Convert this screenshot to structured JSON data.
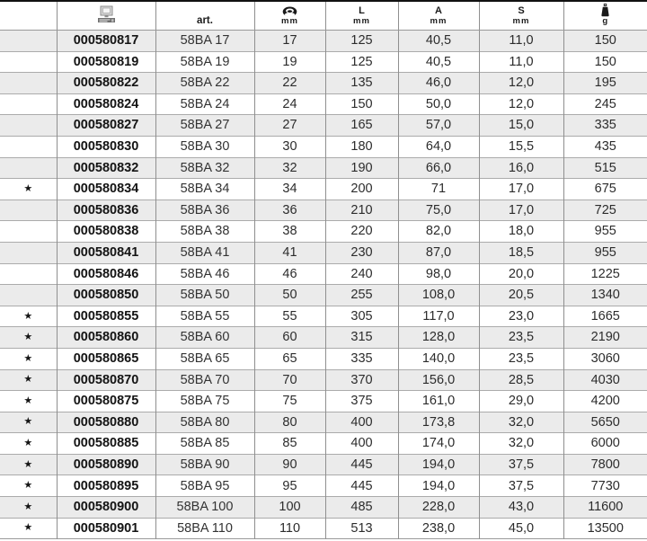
{
  "table": {
    "header": {
      "fav": "",
      "art": "art.",
      "L": "L",
      "A": "A",
      "S": "S",
      "mm": "mm",
      "g": "g"
    },
    "header_icons": {
      "edp": "computer-icon",
      "dia": "nut-icon",
      "weight": "weight-icon"
    },
    "rows": [
      {
        "fav": "",
        "edp": "000580817",
        "art": "58BA 17",
        "dia": "17",
        "l": "125",
        "a": "40,5",
        "s": "11,0",
        "g": "150"
      },
      {
        "fav": "",
        "edp": "000580819",
        "art": "58BA 19",
        "dia": "19",
        "l": "125",
        "a": "40,5",
        "s": "11,0",
        "g": "150"
      },
      {
        "fav": "",
        "edp": "000580822",
        "art": "58BA 22",
        "dia": "22",
        "l": "135",
        "a": "46,0",
        "s": "12,0",
        "g": "195"
      },
      {
        "fav": "",
        "edp": "000580824",
        "art": "58BA 24",
        "dia": "24",
        "l": "150",
        "a": "50,0",
        "s": "12,0",
        "g": "245"
      },
      {
        "fav": "",
        "edp": "000580827",
        "art": "58BA 27",
        "dia": "27",
        "l": "165",
        "a": "57,0",
        "s": "15,0",
        "g": "335"
      },
      {
        "fav": "",
        "edp": "000580830",
        "art": "58BA 30",
        "dia": "30",
        "l": "180",
        "a": "64,0",
        "s": "15,5",
        "g": "435"
      },
      {
        "fav": "",
        "edp": "000580832",
        "art": "58BA 32",
        "dia": "32",
        "l": "190",
        "a": "66,0",
        "s": "16,0",
        "g": "515"
      },
      {
        "fav": "★",
        "edp": "000580834",
        "art": "58BA 34",
        "dia": "34",
        "l": "200",
        "a": "71",
        "s": "17,0",
        "g": "675"
      },
      {
        "fav": "",
        "edp": "000580836",
        "art": "58BA 36",
        "dia": "36",
        "l": "210",
        "a": "75,0",
        "s": "17,0",
        "g": "725"
      },
      {
        "fav": "",
        "edp": "000580838",
        "art": "58BA 38",
        "dia": "38",
        "l": "220",
        "a": "82,0",
        "s": "18,0",
        "g": "955"
      },
      {
        "fav": "",
        "edp": "000580841",
        "art": "58BA 41",
        "dia": "41",
        "l": "230",
        "a": "87,0",
        "s": "18,5",
        "g": "955"
      },
      {
        "fav": "",
        "edp": "000580846",
        "art": "58BA 46",
        "dia": "46",
        "l": "240",
        "a": "98,0",
        "s": "20,0",
        "g": "1225"
      },
      {
        "fav": "",
        "edp": "000580850",
        "art": "58BA 50",
        "dia": "50",
        "l": "255",
        "a": "108,0",
        "s": "20,5",
        "g": "1340"
      },
      {
        "fav": "★",
        "edp": "000580855",
        "art": "58BA 55",
        "dia": "55",
        "l": "305",
        "a": "117,0",
        "s": "23,0",
        "g": "1665"
      },
      {
        "fav": "★",
        "edp": "000580860",
        "art": "58BA 60",
        "dia": "60",
        "l": "315",
        "a": "128,0",
        "s": "23,5",
        "g": "2190"
      },
      {
        "fav": "★",
        "edp": "000580865",
        "art": "58BA 65",
        "dia": "65",
        "l": "335",
        "a": "140,0",
        "s": "23,5",
        "g": "3060"
      },
      {
        "fav": "★",
        "edp": "000580870",
        "art": "58BA 70",
        "dia": "70",
        "l": "370",
        "a": "156,0",
        "s": "28,5",
        "g": "4030"
      },
      {
        "fav": "★",
        "edp": "000580875",
        "art": "58BA 75",
        "dia": "75",
        "l": "375",
        "a": "161,0",
        "s": "29,0",
        "g": "4200"
      },
      {
        "fav": "★",
        "edp": "000580880",
        "art": "58BA 80",
        "dia": "80",
        "l": "400",
        "a": "173,8",
        "s": "32,0",
        "g": "5650"
      },
      {
        "fav": "★",
        "edp": "000580885",
        "art": "58BA 85",
        "dia": "85",
        "l": "400",
        "a": "174,0",
        "s": "32,0",
        "g": "6000"
      },
      {
        "fav": "★",
        "edp": "000580890",
        "art": "58BA 90",
        "dia": "90",
        "l": "445",
        "a": "194,0",
        "s": "37,5",
        "g": "7800"
      },
      {
        "fav": "★",
        "edp": "000580895",
        "art": "58BA 95",
        "dia": "95",
        "l": "445",
        "a": "194,0",
        "s": "37,5",
        "g": "7730"
      },
      {
        "fav": "★",
        "edp": "000580900",
        "art": "58BA 100",
        "dia": "100",
        "l": "485",
        "a": "228,0",
        "s": "43,0",
        "g": "11600"
      },
      {
        "fav": "★",
        "edp": "000580901",
        "art": "58BA 110",
        "dia": "110",
        "l": "513",
        "a": "238,0",
        "s": "45,0",
        "g": "13500"
      }
    ]
  },
  "colors": {
    "row_alt_bg": "#ebebeb",
    "row_bg": "#ffffff",
    "vertical_border": "#8f8f8f",
    "horizontal_border": "#ababab",
    "top_rule": "#111111",
    "text": "#2c2c2c",
    "bold_text": "#141414"
  }
}
